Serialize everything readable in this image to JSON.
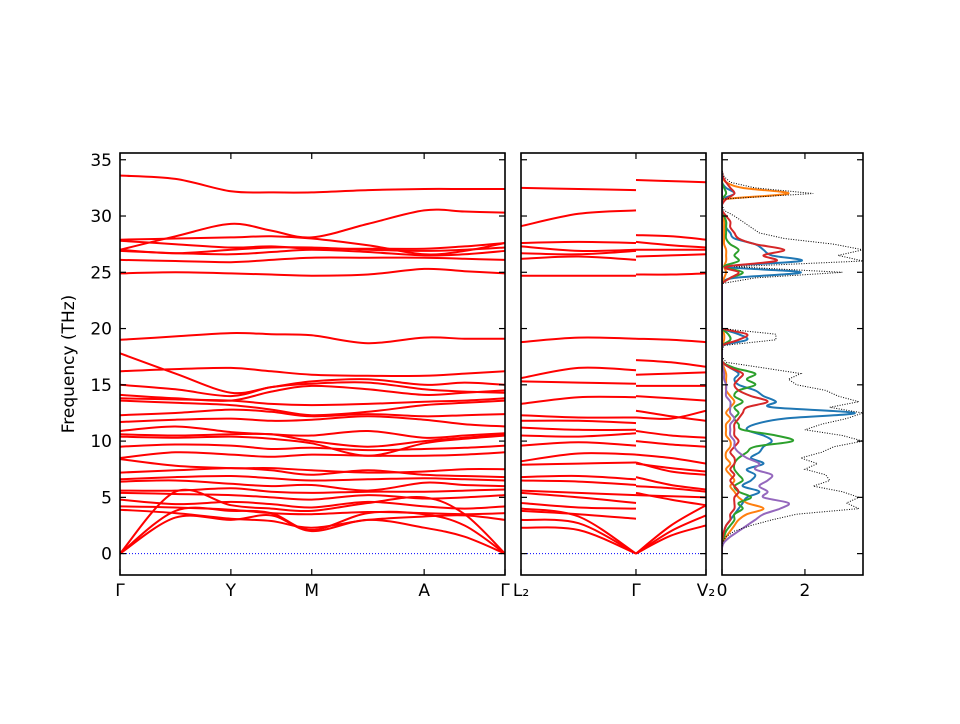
{
  "chart_data": [
    {
      "type": "line",
      "panel": "band-path-1",
      "ylabel": "Frequency (THz)",
      "ylim": [
        -1.9,
        35.6
      ],
      "yticks": [
        0,
        5,
        10,
        15,
        20,
        25,
        30,
        35
      ],
      "xtick_labels": [
        "Γ",
        "Y",
        "M",
        "A",
        "Γ"
      ],
      "xtick_k": [
        0,
        0.288,
        0.498,
        0.79,
        1.0
      ],
      "band_color": "#ff0000",
      "zero_line_color": "#0000ff",
      "sampling": "values at each high-symmetry point and segment midpoint",
      "bands": [
        [
          33.6,
          33.3,
          32.2,
          32.1,
          32.1,
          32.3,
          32.4,
          32.4,
          32.4
        ],
        [
          27.0,
          28.2,
          29.3,
          28.7,
          28.1,
          29.3,
          30.5,
          30.4,
          30.3
        ],
        [
          27.9,
          28.0,
          28.1,
          28.2,
          28.0,
          27.4,
          26.6,
          26.9,
          27.6
        ],
        [
          27.8,
          27.5,
          27.2,
          27.3,
          27.1,
          27.1,
          27.1,
          27.3,
          27.6
        ],
        [
          27.0,
          26.7,
          27.0,
          27.2,
          27.2,
          27.0,
          26.9,
          27.0,
          27.2
        ],
        [
          26.9,
          26.7,
          26.6,
          26.8,
          27.0,
          26.8,
          26.5,
          26.6,
          26.9
        ],
        [
          26.1,
          26.0,
          25.9,
          26.1,
          26.3,
          26.3,
          26.3,
          26.2,
          26.1
        ],
        [
          24.9,
          25.0,
          24.9,
          24.8,
          24.7,
          24.8,
          25.3,
          25.1,
          24.9
        ],
        [
          19.0,
          19.3,
          19.6,
          19.5,
          19.4,
          18.7,
          19.2,
          19.1,
          19.1
        ],
        [
          17.8,
          16.0,
          14.3,
          14.8,
          15.3,
          15.5,
          15.0,
          15.2,
          15.0
        ],
        [
          16.2,
          16.4,
          16.5,
          16.2,
          15.9,
          15.8,
          15.8,
          16.0,
          16.2
        ],
        [
          15.0,
          14.6,
          14.0,
          14.8,
          15.1,
          15.2,
          14.6,
          14.4,
          14.3
        ],
        [
          14.1,
          13.8,
          13.6,
          14.4,
          14.9,
          14.6,
          14.1,
          14.3,
          14.5
        ],
        [
          13.8,
          13.7,
          13.6,
          13.3,
          13.2,
          13.3,
          13.5,
          13.6,
          13.8
        ],
        [
          13.6,
          13.4,
          13.2,
          12.8,
          12.3,
          12.6,
          13.2,
          13.4,
          13.6
        ],
        [
          12.3,
          12.5,
          12.8,
          12.6,
          12.2,
          12.4,
          12.2,
          12.3,
          12.4
        ],
        [
          11.7,
          11.9,
          12.0,
          11.8,
          11.9,
          12.2,
          11.9,
          11.5,
          11.3
        ],
        [
          10.9,
          11.3,
          10.8,
          10.6,
          10.5,
          10.9,
          10.3,
          10.5,
          10.7
        ],
        [
          10.6,
          10.5,
          10.6,
          10.6,
          10.0,
          9.5,
          10.0,
          10.3,
          10.6
        ],
        [
          10.4,
          10.3,
          10.4,
          10.2,
          9.8,
          8.7,
          9.8,
          10.2,
          10.5
        ],
        [
          9.5,
          9.7,
          9.6,
          9.3,
          9.4,
          9.2,
          9.3,
          9.4,
          9.6
        ],
        [
          8.5,
          9.0,
          8.8,
          8.6,
          8.8,
          8.7,
          8.7,
          8.8,
          9.0
        ],
        [
          8.4,
          7.8,
          7.6,
          7.6,
          7.4,
          7.2,
          7.3,
          7.5,
          7.5
        ],
        [
          7.2,
          7.4,
          7.6,
          7.4,
          7.0,
          7.4,
          7.0,
          6.9,
          6.8
        ],
        [
          6.6,
          6.8,
          6.9,
          6.7,
          6.5,
          6.6,
          6.7,
          6.6,
          6.5
        ],
        [
          6.4,
          6.5,
          6.2,
          6.0,
          6.1,
          5.6,
          6.3,
          6.1,
          6.0
        ],
        [
          5.6,
          5.6,
          5.8,
          5.5,
          5.4,
          5.5,
          5.5,
          5.6,
          5.7
        ],
        [
          5.4,
          5.3,
          5.2,
          5.0,
          4.8,
          5.2,
          4.9,
          5.0,
          5.2
        ],
        [
          4.8,
          4.4,
          4.6,
          4.4,
          4.1,
          4.6,
          4.2,
          4.0,
          4.2
        ],
        [
          4.2,
          4.1,
          3.9,
          3.6,
          3.5,
          3.7,
          3.6,
          3.5,
          3.6
        ],
        [
          3.9,
          3.6,
          3.1,
          2.9,
          2.3,
          3.0,
          3.3,
          3.4,
          3.0
        ],
        [
          0,
          5.5,
          4.3,
          4.0,
          3.8,
          4.5,
          5.0,
          3.5,
          0
        ],
        [
          0,
          3.8,
          3.8,
          3.6,
          2.1,
          3.6,
          3.5,
          2.5,
          0
        ],
        [
          0,
          3.2,
          3.0,
          3.4,
          2.0,
          3.0,
          2.3,
          1.5,
          0
        ]
      ]
    },
    {
      "type": "line",
      "panel": "band-path-2",
      "ylim": [
        -1.9,
        35.6
      ],
      "xtick_labels": [
        "L₂",
        "Γ",
        "V₂"
      ],
      "xtick_k": [
        0,
        1.0,
        1.609
      ],
      "segments": [
        {
          "bands": [
            [
              32.5,
              32.4,
              32.3
            ],
            [
              29.1,
              30.2,
              30.5
            ],
            [
              27.6,
              27.7,
              27.6
            ],
            [
              27.3,
              26.9,
              27.0
            ],
            [
              26.7,
              26.6,
              26.9
            ],
            [
              26.2,
              26.4,
              26.1
            ],
            [
              24.7,
              24.7,
              24.7
            ],
            [
              18.8,
              19.2,
              19.1
            ],
            [
              15.6,
              16.5,
              16.3
            ],
            [
              15.3,
              15.2,
              15.1
            ],
            [
              13.3,
              13.9,
              13.9
            ],
            [
              12.3,
              12.1,
              12.1
            ],
            [
              11.8,
              11.8,
              11.6
            ],
            [
              11.2,
              11.0,
              11.0
            ],
            [
              10.5,
              10.4,
              10.7
            ],
            [
              9.6,
              9.9,
              9.6
            ],
            [
              8.2,
              8.9,
              8.8
            ],
            [
              7.9,
              8.0,
              8.1
            ],
            [
              6.8,
              6.9,
              6.6
            ],
            [
              6.5,
              6.4,
              6.1
            ],
            [
              5.6,
              5.4,
              5.2
            ],
            [
              5.4,
              5.0,
              4.5
            ],
            [
              4.5,
              4.1,
              4.0
            ],
            [
              3.8,
              3.5,
              3.1
            ],
            [
              3.0,
              2.7,
              0
            ],
            [
              2.3,
              2.1,
              0
            ],
            [
              4.0,
              3.3,
              0
            ]
          ]
        },
        {
          "bands": [
            [
              33.2,
              33.1,
              33.0
            ],
            [
              28.3,
              28.2,
              27.9
            ],
            [
              27.7,
              27.4,
              27.2
            ],
            [
              27.0,
              27.0,
              27.0
            ],
            [
              26.4,
              26.5,
              26.6
            ],
            [
              24.8,
              24.8,
              24.9
            ],
            [
              19.1,
              19.0,
              18.8
            ],
            [
              17.2,
              17.0,
              16.6
            ],
            [
              15.9,
              16.0,
              16.1
            ],
            [
              14.9,
              14.9,
              14.9
            ],
            [
              14.0,
              13.8,
              13.6
            ],
            [
              12.7,
              12.2,
              11.8
            ],
            [
              12.1,
              12.0,
              12.7
            ],
            [
              10.9,
              10.5,
              10.3
            ],
            [
              10.0,
              9.7,
              9.5
            ],
            [
              8.8,
              8.5,
              8.0
            ],
            [
              8.0,
              7.6,
              7.3
            ],
            [
              8.1,
              7.3,
              7.0
            ],
            [
              6.8,
              6.1,
              5.7
            ],
            [
              6.0,
              5.8,
              5.5
            ],
            [
              5.2,
              5.1,
              5.0
            ],
            [
              5.4,
              4.8,
              4.3
            ],
            [
              0,
              2.0,
              3.4
            ],
            [
              0,
              1.6,
              2.5
            ],
            [
              0,
              2.5,
              4.3
            ]
          ]
        }
      ]
    },
    {
      "type": "line",
      "panel": "dos",
      "xlim": [
        0,
        3.4
      ],
      "xticks": [
        0,
        2
      ],
      "ylim": [
        -1.9,
        35.6
      ],
      "freq_start": 0,
      "freq_step": 0.5,
      "total": {
        "color": "#000000",
        "style": "dotted",
        "values": [
          0,
          0,
          0.02,
          0.1,
          0.3,
          0.7,
          1.2,
          1.8,
          3.3,
          3.0,
          3.3,
          2.9,
          2.2,
          2.6,
          2.5,
          2.0,
          2.3,
          1.9,
          2.4,
          2.7,
          3.4,
          2.9,
          2.0,
          2.4,
          3.0,
          3.4,
          2.6,
          3.3,
          2.8,
          2.5,
          1.8,
          1.6,
          1.9,
          1.0,
          0.1,
          0,
          0,
          0.05,
          1.3,
          1.3,
          0,
          0,
          0,
          0,
          0,
          0,
          0,
          0,
          0,
          0.8,
          2.9,
          0.3,
          3.4,
          2.8,
          3.4,
          2.7,
          1.5,
          0.9,
          0.7,
          0.5,
          0.3,
          0.05,
          0,
          0,
          2.2,
          0.8,
          0.2,
          0.05,
          0
        ]
      },
      "series": [
        {
          "color": "#1f77b4",
          "values": [
            0,
            0,
            0,
            0.02,
            0.05,
            0.1,
            0.2,
            0.3,
            0.4,
            0.5,
            0.6,
            0.9,
            0.5,
            0.7,
            0.8,
            0.6,
            1.0,
            0.7,
            0.9,
            1.0,
            1.2,
            1.0,
            0.6,
            0.8,
            1.5,
            3.2,
            1.2,
            1.3,
            1.0,
            0.8,
            0.4,
            0.3,
            0.4,
            0.2,
            0,
            0,
            0,
            0,
            0.6,
            0.4,
            0,
            0,
            0,
            0,
            0,
            0,
            0,
            0,
            0,
            0.3,
            1.9,
            0.1,
            1.9,
            1.2,
            1.0,
            0.8,
            0.3,
            0.2,
            0.1,
            0.1,
            0.05,
            0,
            0,
            0,
            0.3,
            0.1,
            0,
            0,
            0
          ]
        },
        {
          "color": "#ff7f0e",
          "values": [
            0,
            0,
            0.02,
            0.1,
            0.2,
            0.3,
            0.4,
            0.6,
            1.0,
            0.6,
            0.4,
            0.3,
            0.2,
            0.3,
            0.2,
            0.1,
            0.2,
            0.1,
            0.1,
            0.2,
            0.2,
            0.1,
            0.1,
            0.1,
            0.2,
            0.1,
            0.2,
            0.3,
            0.2,
            0.1,
            0.1,
            0.1,
            0.1,
            0.05,
            0,
            0,
            0,
            0,
            0.05,
            0.05,
            0,
            0,
            0,
            0,
            0,
            0,
            0,
            0,
            0,
            0.05,
            0.1,
            0.05,
            0.1,
            0.1,
            0.1,
            0.05,
            0.05,
            0.05,
            0.05,
            0.05,
            0.02,
            0,
            0,
            0.1,
            1.6,
            0.5,
            0.1,
            0.02,
            0
          ]
        },
        {
          "color": "#2ca02c",
          "values": [
            0,
            0,
            0,
            0.05,
            0.1,
            0.2,
            0.3,
            0.3,
            0.5,
            0.4,
            0.7,
            0.4,
            0.3,
            0.5,
            0.4,
            0.3,
            0.3,
            0.4,
            0.6,
            0.8,
            1.7,
            1.3,
            0.5,
            0.4,
            0.3,
            0.4,
            0.3,
            0.5,
            0.3,
            0.4,
            0.8,
            0.6,
            0.8,
            0.3,
            0.02,
            0,
            0,
            0,
            0.2,
            0.15,
            0,
            0,
            0,
            0,
            0,
            0,
            0,
            0,
            0,
            0.2,
            0.5,
            0.05,
            0.4,
            0.3,
            0.4,
            0.2,
            0.1,
            0.1,
            0.1,
            0.1,
            0.05,
            0,
            0,
            0,
            0.1,
            0.05,
            0,
            0,
            0
          ]
        },
        {
          "color": "#d62728",
          "values": [
            0,
            0,
            0,
            0.02,
            0.05,
            0.1,
            0.2,
            0.2,
            0.3,
            0.3,
            0.3,
            0.4,
            0.3,
            0.2,
            0.3,
            0.2,
            0.3,
            0.3,
            0.2,
            0.3,
            0.4,
            0.3,
            0.3,
            0.3,
            0.4,
            0.5,
            0.6,
            1.1,
            0.7,
            0.4,
            0.3,
            0.4,
            0.5,
            0.2,
            0.02,
            0,
            0,
            0,
            0.4,
            0.6,
            0,
            0,
            0,
            0,
            0,
            0,
            0,
            0,
            0,
            0.2,
            0.4,
            0.1,
            1.3,
            1.0,
            1.5,
            0.8,
            0.4,
            0.3,
            0.2,
            0.2,
            0.1,
            0,
            0,
            0.1,
            0.3,
            0.2,
            0.1,
            0.02,
            0
          ]
        },
        {
          "color": "#9467bd",
          "values": [
            0,
            0,
            0.05,
            0.2,
            0.4,
            0.6,
            0.8,
            1.0,
            1.4,
            1.6,
            1.0,
            1.1,
            0.9,
            1.1,
            1.2,
            0.8,
            0.9,
            0.6,
            0.4,
            0.3,
            0.3,
            0.2,
            0.2,
            0.2,
            0.3,
            0.2,
            0.2,
            0.2,
            0.1,
            0.1,
            0.1,
            0.05,
            0.05,
            0.02,
            0,
            0,
            0,
            0,
            0,
            0,
            0,
            0,
            0,
            0,
            0,
            0,
            0,
            0,
            0,
            0,
            0,
            0,
            0,
            0,
            0,
            0,
            0,
            0,
            0,
            0,
            0,
            0,
            0,
            0,
            0,
            0,
            0,
            0,
            0
          ]
        }
      ]
    }
  ]
}
